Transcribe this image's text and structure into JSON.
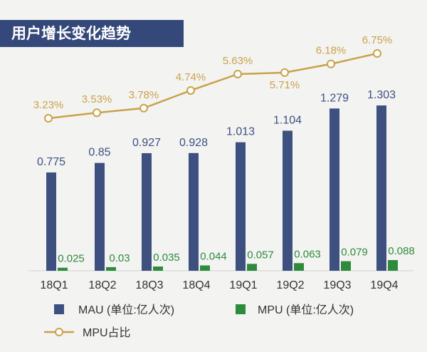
{
  "colors": {
    "mau": "#3d5080",
    "mpu": "#2e8b3c",
    "ratio": "#c9a24a",
    "header": "#34487a"
  },
  "chart_data": {
    "type": "bar",
    "title": "用户增长变化趋势",
    "categories": [
      "18Q1",
      "18Q2",
      "18Q3",
      "18Q4",
      "19Q1",
      "19Q2",
      "19Q3",
      "19Q4"
    ],
    "series": [
      {
        "name": "MAU (单位:亿人次)",
        "type": "bar",
        "values": [
          0.775,
          0.85,
          0.927,
          0.928,
          1.013,
          1.104,
          1.279,
          1.303
        ],
        "labels": [
          "0.775",
          "0.85",
          "0.927",
          "0.928",
          "1.013",
          "1.104",
          "1.279",
          "1.303"
        ]
      },
      {
        "name": "MPU (单位:亿人次)",
        "type": "bar",
        "values": [
          0.025,
          0.03,
          0.035,
          0.044,
          0.057,
          0.063,
          0.079,
          0.088
        ],
        "labels": [
          "0.025",
          "0.03",
          "0.035",
          "0.044",
          "0.057",
          "0.063",
          "0.079",
          "0.088"
        ]
      },
      {
        "name": "MPU占比",
        "type": "line",
        "values": [
          3.23,
          3.53,
          3.78,
          4.74,
          5.63,
          5.71,
          6.18,
          6.75
        ],
        "labels": [
          "3.23%",
          "3.53%",
          "3.78%",
          "4.74%",
          "5.63%",
          "5.71%",
          "6.18%",
          "6.75%"
        ]
      }
    ],
    "legend": {
      "position": "bottom"
    },
    "grid": false
  }
}
